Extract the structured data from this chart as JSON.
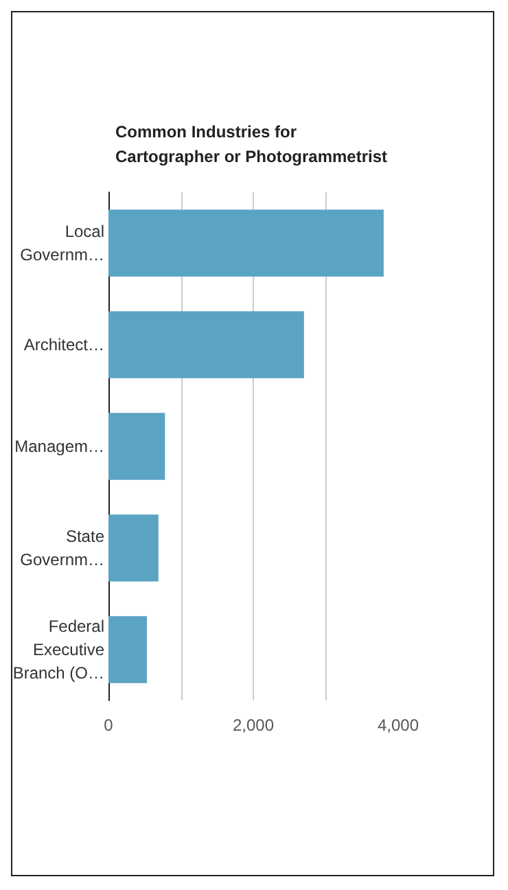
{
  "chart_data": {
    "type": "bar",
    "orientation": "horizontal",
    "title": "Common Industries for\nCartographer or Photogrammetrist",
    "categories": [
      "Local\nGovernm…",
      "Architect…",
      "Managem…",
      "State\nGovernm…",
      "Federal\nExecutive\nBranch (O…"
    ],
    "values": [
      3800,
      2700,
      780,
      690,
      530
    ],
    "color": "#5ba3c2",
    "xlim": [
      0,
      4000
    ],
    "xticks": [
      0,
      {
        "value": 1000,
        "label": null
      },
      {
        "value": 2000,
        "label": "2,000"
      },
      {
        "value": 3000,
        "label": null
      },
      {
        "value": 4000,
        "label": "4,000"
      }
    ],
    "grid": "x"
  }
}
